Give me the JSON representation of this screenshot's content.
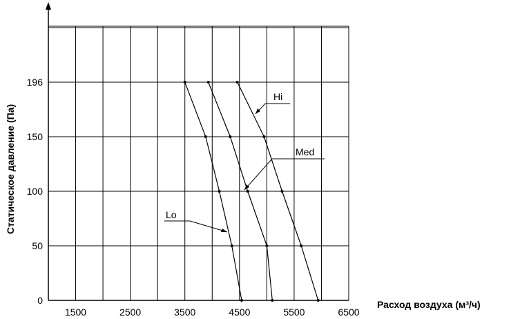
{
  "chart_data": {
    "type": "line",
    "xlabel": "Расход воздуха (м³/ч)",
    "ylabel": "Статическое давление (Па)",
    "x_ticks": [
      "1500",
      "2500",
      "3500",
      "4500",
      "5500",
      "6500"
    ],
    "y_ticks": [
      "0",
      "50",
      "100",
      "150",
      "196"
    ],
    "xlim": [
      1000,
      6500
    ],
    "y_tick_values": [
      0,
      50,
      100,
      150,
      196
    ],
    "grid": true,
    "series": [
      {
        "name": "Lo",
        "x": [
          3500,
          3880,
          4130,
          4360,
          4540
        ],
        "y": [
          196,
          150,
          100,
          50,
          0
        ]
      },
      {
        "name": "Med",
        "x": [
          3930,
          4330,
          4650,
          5000,
          5100
        ],
        "y": [
          196,
          150,
          100,
          50,
          0
        ]
      },
      {
        "name": "Hi",
        "x": [
          4460,
          4950,
          5280,
          5630,
          5940
        ],
        "y": [
          196,
          150,
          100,
          50,
          0
        ]
      }
    ]
  }
}
